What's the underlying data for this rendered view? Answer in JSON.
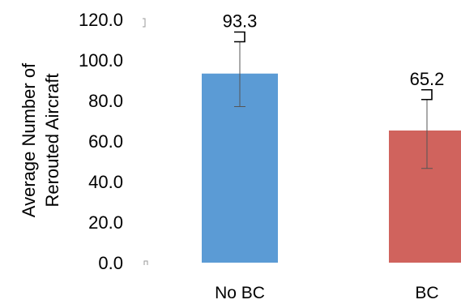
{
  "chart_data": {
    "type": "bar",
    "categories": [
      "No BC",
      "BC"
    ],
    "values": [
      93.3,
      65.2
    ],
    "data_labels": [
      "93.3",
      "65.2"
    ],
    "error_bars": [
      {
        "low": 77.0,
        "high": 109.0
      },
      {
        "low": 46.5,
        "high": 80.5
      }
    ],
    "colors": [
      "#5b9bd5",
      "#d0635d"
    ],
    "ylabel_line1": "Average Number of",
    "ylabel_line2": "Rerouted Aircraft",
    "ylim": [
      0,
      120
    ],
    "yticks": [
      {
        "value": 0,
        "label": "0.0"
      },
      {
        "value": 20,
        "label": "20.0"
      },
      {
        "value": 40,
        "label": "40.0"
      },
      {
        "value": 60,
        "label": "60.0"
      },
      {
        "value": 80,
        "label": "80.0"
      },
      {
        "value": 100,
        "label": "100.0"
      },
      {
        "value": 120,
        "label": "120.0"
      }
    ],
    "grid": false,
    "legend": "none"
  }
}
